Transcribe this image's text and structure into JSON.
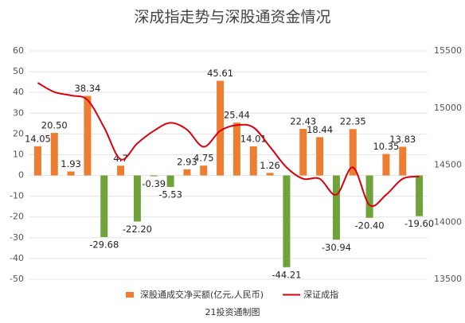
{
  "chart_data": {
    "type": "bar",
    "title": "深成指走势与深股通资金情况",
    "source": "21投资通制图",
    "ylim": [
      -50,
      60
    ],
    "yticks": [
      -50,
      -40,
      -30,
      -20,
      -10,
      0,
      10,
      20,
      30,
      40,
      50,
      60
    ],
    "y2lim": [
      13500,
      15500
    ],
    "y2ticks": [
      13500,
      14000,
      14500,
      15000,
      15500
    ],
    "grid": true,
    "legend": "bottom",
    "series": [
      {
        "name": "深股通成交净买额(亿元,人民币)",
        "type": "bar",
        "color": "#ed7d31",
        "negative_color": "#70a23a",
        "values": [
          14.05,
          20.5,
          1.93,
          38.34,
          -29.68,
          4.7,
          -22.2,
          -0.39,
          -5.53,
          2.93,
          4.75,
          45.61,
          25.44,
          14.01,
          1.26,
          -44.21,
          22.43,
          18.44,
          -30.94,
          22.35,
          -20.4,
          10.35,
          13.83,
          -19.6
        ],
        "value_labels": [
          "14.05",
          "20.50",
          "1.93",
          "38.34",
          "-29.68",
          "4.7",
          "-22.20",
          "-0.39",
          "-5.53",
          "2.93",
          "4.75",
          "45.61",
          "25.44",
          "14.01",
          "1.26",
          "-44.21",
          "22.43",
          "18.44",
          "-30.94",
          "22.35",
          "-20.40",
          "10.35",
          "13.83",
          "-19.60"
        ]
      },
      {
        "name": "深证成指",
        "type": "line",
        "axis": "y2",
        "color": "#d9000d",
        "values": [
          15220,
          15140,
          15110,
          15070,
          14830,
          14550,
          14690,
          14800,
          14870,
          14810,
          14660,
          14800,
          14850,
          14830,
          14660,
          14480,
          14380,
          14380,
          14240,
          14480,
          14150,
          14240,
          14380,
          14400
        ]
      }
    ]
  }
}
